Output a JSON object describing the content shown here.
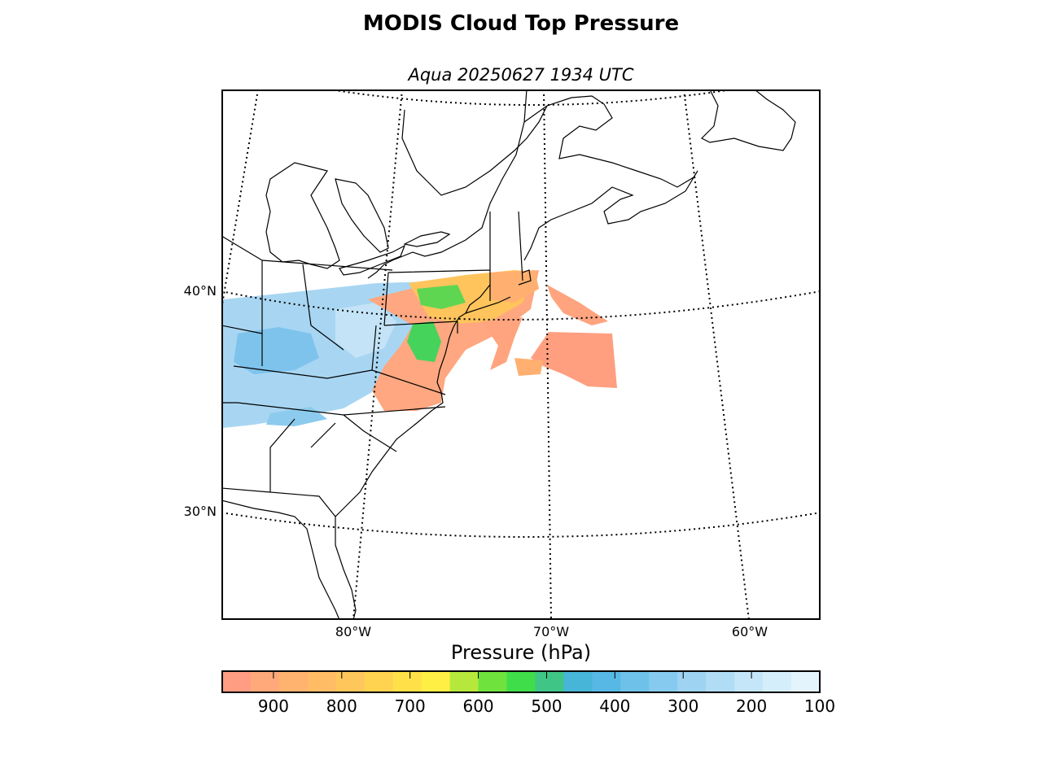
{
  "header": {
    "title": "MODIS Cloud Top Pressure",
    "subtitle": "Aqua 20250627 1934 UTC"
  },
  "map": {
    "projection": "lambert-conformal",
    "region": "Eastern United States and western North Atlantic",
    "lat_labels": [
      "40°N",
      "30°N"
    ],
    "lon_labels": [
      "80°W",
      "70°W",
      "60°W"
    ],
    "graticule_style": "dotted",
    "colors": {
      "coastline": "#000000",
      "background": "#ffffff",
      "no_data": "#ffffff"
    }
  },
  "colorbar": {
    "label": "Pressure (hPa)",
    "ticks": [
      "900",
      "800",
      "700",
      "600",
      "500",
      "400",
      "300",
      "200",
      "100"
    ],
    "range": [
      975,
      100
    ],
    "bins": [
      "#ff9d82",
      "#ffa97a",
      "#ffb36f",
      "#ffbc65",
      "#ffc75b",
      "#ffd350",
      "#ffe048",
      "#ffee44",
      "#b6e83c",
      "#6fe23d",
      "#3fdd4a",
      "#3fc687",
      "#46b5d7",
      "#57b8e5",
      "#6ec2ea",
      "#86cbef",
      "#9ed4f2",
      "#b1dcf5",
      "#c4e6f8",
      "#d5eefb",
      "#e4f4fd"
    ]
  }
}
